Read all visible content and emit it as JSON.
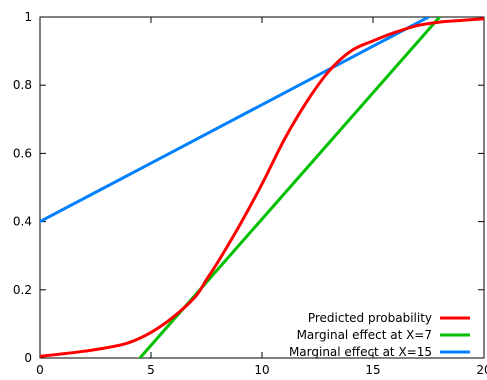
{
  "chart_data": {
    "type": "line",
    "xlim": [
      0,
      20
    ],
    "ylim": [
      0,
      1
    ],
    "xticks": [
      "0",
      "5",
      "10",
      "15",
      "20"
    ],
    "yticks": [
      "0",
      "0.2",
      "0.4",
      "0.6",
      "0.8",
      "1"
    ],
    "grid": false,
    "legend_position": "bottom-right",
    "series": [
      {
        "name": "Predicted probability",
        "color": "#ff0000",
        "x": [
          0,
          1,
          2,
          3,
          4,
          5,
          6,
          7,
          7.5,
          8,
          9,
          10,
          11,
          12,
          13,
          14,
          15,
          16,
          17,
          18,
          19,
          20
        ],
        "y": [
          0.005,
          0.012,
          0.02,
          0.03,
          0.045,
          0.075,
          0.12,
          0.18,
          0.23,
          0.28,
          0.39,
          0.51,
          0.64,
          0.75,
          0.84,
          0.9,
          0.93,
          0.955,
          0.975,
          0.985,
          0.99,
          0.995
        ]
      },
      {
        "name": "Marginal effect at X=7",
        "color": "#00c000",
        "x": [
          4.5,
          18
        ],
        "y": [
          0,
          1
        ]
      },
      {
        "name": "Marginal effect at X=15",
        "color": "#0080ff",
        "x": [
          0,
          17.5
        ],
        "y": [
          0.4,
          1
        ]
      }
    ]
  }
}
